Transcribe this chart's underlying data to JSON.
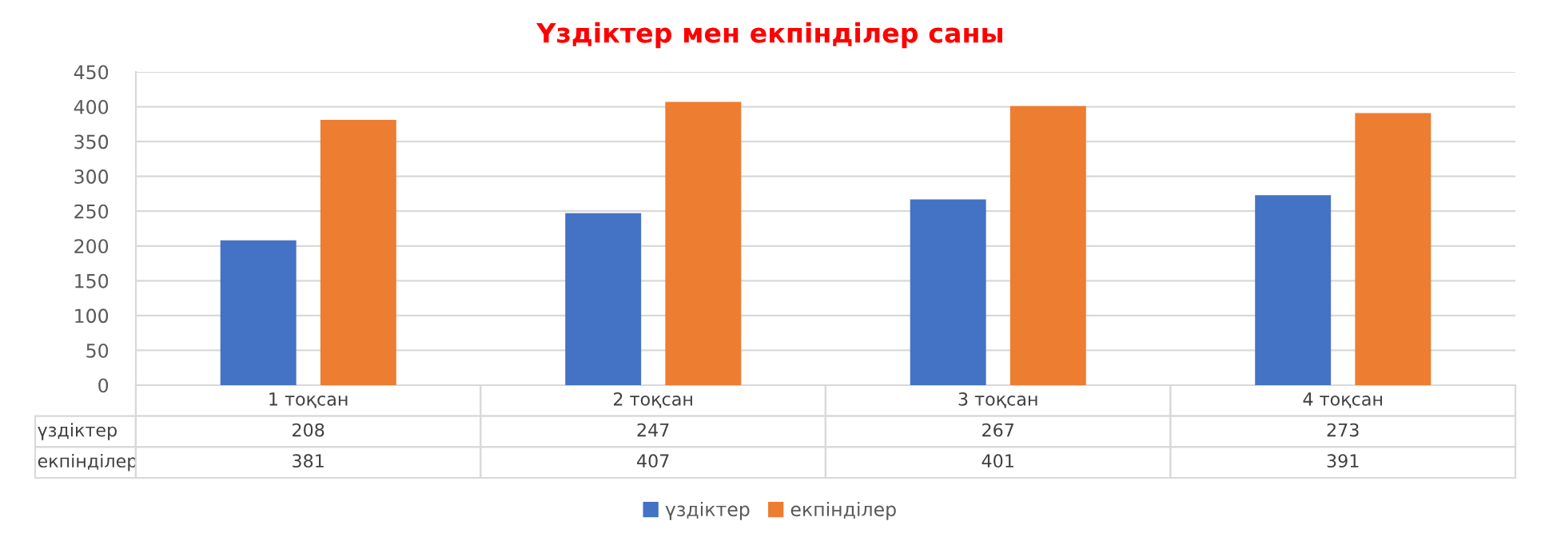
{
  "chart_data": {
    "type": "bar",
    "title": "Үздіктер мен екпінділер саны",
    "categories": [
      "1 тоқсан",
      "2 тоқсан",
      "3 тоқсан",
      "4 тоқсан"
    ],
    "series": [
      {
        "name": "үздіктер",
        "color": "#4472c4",
        "values": [
          208,
          247,
          267,
          273
        ]
      },
      {
        "name": "екпінділер",
        "color": "#ed7d31",
        "values": [
          381,
          407,
          401,
          391
        ]
      }
    ],
    "ylim": [
      0,
      450
    ],
    "yticks": [
      0,
      50,
      100,
      150,
      200,
      250,
      300,
      350,
      400,
      450
    ],
    "grid": "y",
    "legend": "bottom",
    "data_labels": true
  }
}
